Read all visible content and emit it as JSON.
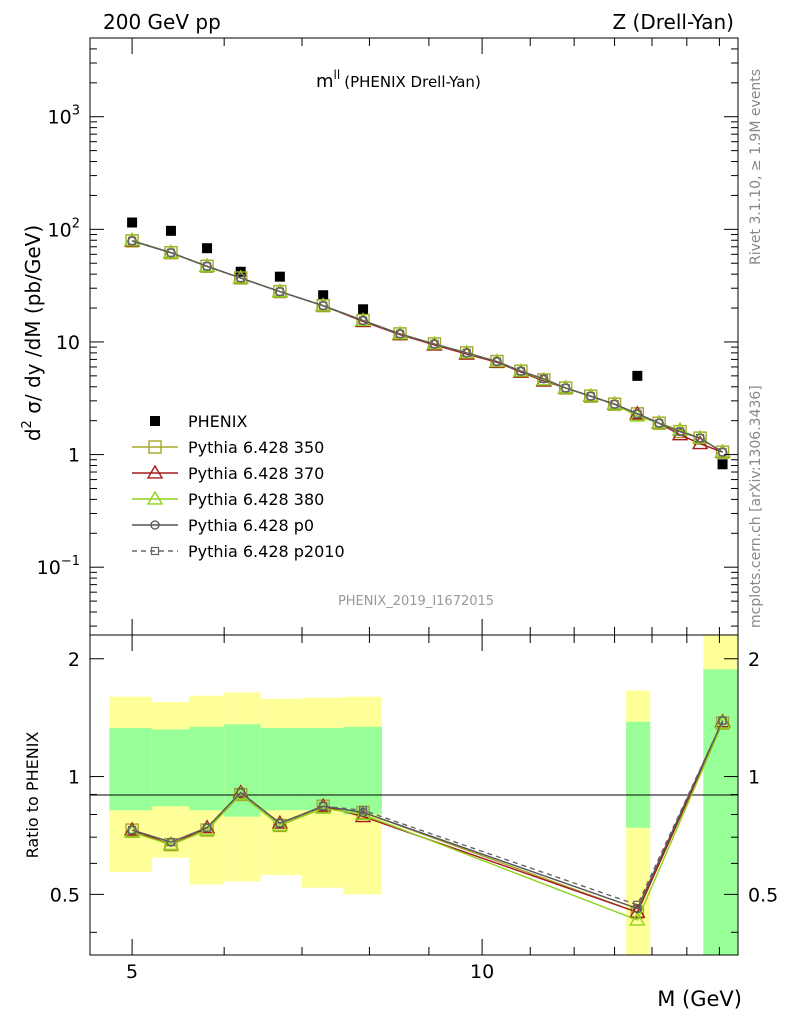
{
  "header": {
    "left": "200 GeV pp",
    "right": "Z (Drell-Yan)"
  },
  "side_labels": {
    "rivet": "Rivet 3.1.10, ≥ 1.9M events",
    "mcplots": "mcplots.cern.ch [arXiv:1306.3436]"
  },
  "chart_data": [
    {
      "type": "scatter",
      "panel": "main",
      "title": "m",
      "title_superscript": "ll",
      "title_suffix": "(PHENIX Drell-Yan)",
      "ylabel": "d² σ/ dy /dM (pb/GeV)",
      "ylabel_parts": {
        "d": "d",
        "sup": "2",
        "rest": " σ/ dy /dM (pb/GeV)"
      },
      "yscale": "log",
      "ylim": [
        0.025,
        5000
      ],
      "xlim": [
        4.6,
        16.6
      ],
      "watermark": "PHENIX_2019_I1672015",
      "legend_position": "middle-left",
      "y_ticks": [
        {
          "value": 0.1,
          "base": "10",
          "exp": "−1"
        },
        {
          "value": 1,
          "base": "1",
          "exp": ""
        },
        {
          "value": 10,
          "base": "10",
          "exp": ""
        },
        {
          "value": 100,
          "base": "10",
          "exp": "2"
        },
        {
          "value": 1000,
          "base": "10",
          "exp": "3"
        }
      ],
      "series": [
        {
          "name": "PHENIX",
          "color": "#000000",
          "marker": "filled-square",
          "line": "none",
          "x": [
            5.0,
            5.4,
            5.8,
            6.2,
            6.7,
            7.3,
            7.9,
            13.6,
            16.1
          ],
          "y": [
            115,
            97,
            68,
            42,
            38,
            26,
            19.5,
            5.0,
            0.82
          ]
        },
        {
          "name": "Pythia 6.428 350",
          "color": "#a6a62c",
          "marker": "open-square",
          "line": "solid",
          "x": [
            5.0,
            5.4,
            5.8,
            6.2,
            6.7,
            7.3,
            7.9,
            8.5,
            9.1,
            9.7,
            10.3,
            10.8,
            11.3,
            11.8,
            12.4,
            13.0,
            13.6,
            14.2,
            14.8,
            15.4,
            16.1
          ],
          "y": [
            79,
            62,
            47,
            37,
            28,
            21,
            15.5,
            11.8,
            9.6,
            8.0,
            6.7,
            5.5,
            4.6,
            3.9,
            3.3,
            2.8,
            2.3,
            1.9,
            1.6,
            1.4,
            1.05
          ]
        },
        {
          "name": "Pythia 6.428 370",
          "color": "#a6191c",
          "marker": "open-triangle",
          "line": "solid",
          "x": [
            5.0,
            5.4,
            5.8,
            6.2,
            6.7,
            7.3,
            7.9,
            8.5,
            9.1,
            9.7,
            10.3,
            10.8,
            11.3,
            11.8,
            12.4,
            13.0,
            13.6,
            14.2,
            14.8,
            15.4,
            16.1
          ],
          "y": [
            79,
            62,
            47,
            37,
            28,
            21,
            15.2,
            11.6,
            9.4,
            7.8,
            6.6,
            5.4,
            4.5,
            3.9,
            3.3,
            2.8,
            2.3,
            1.9,
            1.5,
            1.25,
            1.05
          ]
        },
        {
          "name": "Pythia 6.428 380",
          "color": "#8ed21c",
          "marker": "open-triangle",
          "line": "solid",
          "x": [
            5.0,
            5.4,
            5.8,
            6.2,
            6.7,
            7.3,
            7.9,
            8.5,
            9.1,
            9.7,
            10.3,
            10.8,
            11.3,
            11.8,
            12.4,
            13.0,
            13.6,
            14.2,
            14.8,
            15.4,
            16.1
          ],
          "y": [
            80,
            62,
            47,
            37,
            28,
            21,
            15.5,
            11.8,
            9.6,
            8.0,
            6.7,
            5.5,
            4.6,
            3.9,
            3.3,
            2.8,
            2.2,
            1.9,
            1.65,
            1.4,
            1.05
          ]
        },
        {
          "name": "Pythia 6.428 p0",
          "color": "#555555",
          "marker": "open-circle",
          "line": "solid",
          "x": [
            5.0,
            5.4,
            5.8,
            6.2,
            6.7,
            7.3,
            7.9,
            8.5,
            9.1,
            9.7,
            10.3,
            10.8,
            11.3,
            11.8,
            12.4,
            13.0,
            13.6,
            14.2,
            14.8,
            15.4,
            16.1
          ],
          "y": [
            79,
            62,
            47,
            37,
            28,
            21,
            15.5,
            11.8,
            9.6,
            8.0,
            6.7,
            5.5,
            4.7,
            3.9,
            3.3,
            2.8,
            2.3,
            1.9,
            1.6,
            1.4,
            1.05
          ]
        },
        {
          "name": "Pythia 6.428 p2010",
          "color": "#666666",
          "marker": "open-square-small",
          "line": "dashed",
          "x": [
            5.0,
            5.4,
            5.8,
            6.2,
            6.7,
            7.3,
            7.9,
            8.5,
            9.1,
            9.7,
            10.3,
            10.8,
            11.3,
            11.8,
            12.4,
            13.0,
            13.6,
            14.2,
            14.8,
            15.4,
            16.1
          ],
          "y": [
            79,
            62,
            47,
            37,
            28,
            21,
            15.5,
            11.8,
            9.6,
            8.0,
            6.7,
            5.5,
            4.7,
            3.9,
            3.3,
            2.8,
            2.3,
            1.9,
            1.6,
            1.4,
            1.05
          ]
        }
      ]
    },
    {
      "type": "line",
      "panel": "ratio",
      "ylabel": "Ratio to PHENIX",
      "xlabel": "M (GeV)",
      "ylim": [
        0.35,
        2.3
      ],
      "xlim": [
        4.6,
        16.6
      ],
      "x_ticks": [
        5,
        10
      ],
      "y_ticks": [
        0.5,
        1,
        2
      ],
      "reference_line": 1,
      "bands": [
        {
          "x0": 4.78,
          "x1": 5.2,
          "y_lo": 0.57,
          "y_hi": 1.6,
          "g_lo": 0.82,
          "g_hi": 1.33
        },
        {
          "x0": 5.2,
          "x1": 5.6,
          "y_lo": 0.62,
          "y_hi": 1.55,
          "g_lo": 0.84,
          "g_hi": 1.32
        },
        {
          "x0": 5.6,
          "x1": 6.0,
          "y_lo": 0.53,
          "y_hi": 1.61,
          "g_lo": 0.82,
          "g_hi": 1.34
        },
        {
          "x0": 6.0,
          "x1": 6.45,
          "y_lo": 0.54,
          "y_hi": 1.64,
          "g_lo": 0.79,
          "g_hi": 1.36
        },
        {
          "x0": 6.45,
          "x1": 7.0,
          "y_lo": 0.56,
          "y_hi": 1.58,
          "g_lo": 0.82,
          "g_hi": 1.33
        },
        {
          "x0": 7.0,
          "x1": 7.6,
          "y_lo": 0.52,
          "y_hi": 1.59,
          "g_lo": 0.82,
          "g_hi": 1.33
        },
        {
          "x0": 7.6,
          "x1": 8.2,
          "y_lo": 0.5,
          "y_hi": 1.6,
          "g_lo": 0.8,
          "g_hi": 1.34
        },
        {
          "x0": 13.3,
          "x1": 13.95,
          "y_lo": 0.35,
          "y_hi": 1.66,
          "g_lo": 0.74,
          "g_hi": 1.38
        },
        {
          "x0": 15.5,
          "x1": 16.6,
          "y_lo": 0.35,
          "y_hi": 2.3,
          "g_lo": 0.35,
          "g_hi": 1.88
        }
      ],
      "series": [
        {
          "name": "Pythia 6.428 350",
          "color": "#a6a62c",
          "marker": "open-square",
          "line": "solid",
          "x": [
            5.0,
            5.4,
            5.8,
            6.2,
            6.7,
            7.3,
            7.9,
            13.6,
            16.1
          ],
          "y": [
            0.73,
            0.67,
            0.73,
            0.9,
            0.75,
            0.84,
            0.81,
            0.45,
            1.37
          ]
        },
        {
          "name": "Pythia 6.428 370",
          "color": "#a6191c",
          "marker": "open-triangle",
          "line": "solid",
          "x": [
            5.0,
            5.4,
            5.8,
            6.2,
            6.7,
            7.3,
            7.9,
            13.6,
            16.1
          ],
          "y": [
            0.73,
            0.67,
            0.74,
            0.91,
            0.76,
            0.84,
            0.79,
            0.45,
            1.38
          ]
        },
        {
          "name": "Pythia 6.428 380",
          "color": "#8ed21c",
          "marker": "open-triangle",
          "line": "solid",
          "x": [
            5.0,
            5.4,
            5.8,
            6.2,
            6.7,
            7.3,
            7.9,
            13.6,
            16.1
          ],
          "y": [
            0.72,
            0.67,
            0.73,
            0.9,
            0.75,
            0.83,
            0.8,
            0.43,
            1.37
          ]
        },
        {
          "name": "Pythia 6.428 p0",
          "color": "#555555",
          "marker": "open-circle",
          "line": "solid",
          "x": [
            5.0,
            5.4,
            5.8,
            6.2,
            6.7,
            7.3,
            7.9,
            13.6,
            16.1
          ],
          "y": [
            0.73,
            0.68,
            0.74,
            0.91,
            0.76,
            0.84,
            0.81,
            0.46,
            1.39
          ]
        },
        {
          "name": "Pythia 6.428 p2010",
          "color": "#666666",
          "marker": "open-square-small",
          "line": "dashed",
          "x": [
            5.0,
            5.4,
            5.8,
            6.2,
            6.7,
            7.3,
            7.9,
            13.6,
            16.1
          ],
          "y": [
            0.73,
            0.68,
            0.74,
            0.91,
            0.76,
            0.84,
            0.82,
            0.47,
            1.39
          ]
        }
      ]
    }
  ]
}
